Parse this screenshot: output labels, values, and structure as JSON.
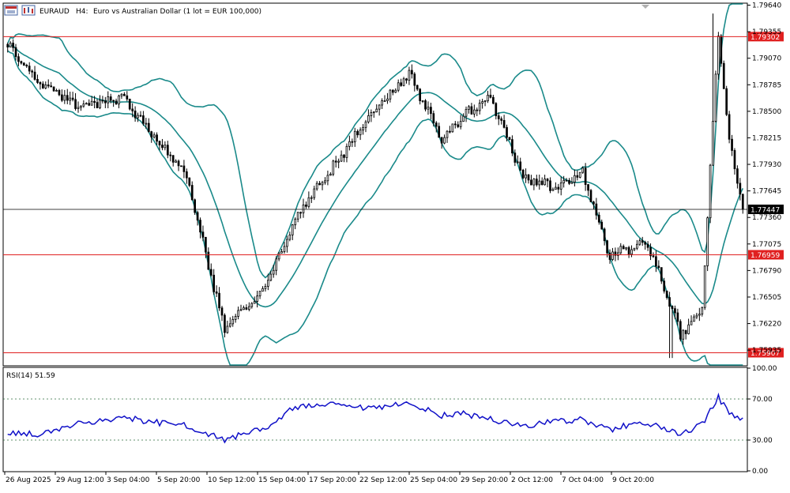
{
  "header": {
    "symbol": "EURAUD",
    "timeframe": "H4:",
    "description": "Euro vs Australian Dollar (1 lot = EUR 100,000)"
  },
  "toolbar": {
    "icons": [
      "chart-window-icon",
      "chart-properties-icon"
    ]
  },
  "colors": {
    "candle": "#000000",
    "bollinger": "#1a8a8a",
    "level_line": "#e02020",
    "price_line": "#000000",
    "rsi_line": "#1010c8",
    "grid_dash": "#2e6e3e"
  },
  "price_levels": [
    {
      "value": 1.79302,
      "label": "1.79302"
    },
    {
      "value": 1.76959,
      "label": "1.76959"
    },
    {
      "value": 1.75907,
      "label": "1.75907"
    }
  ],
  "current_price": {
    "value": 1.77447,
    "label": "1.77447"
  },
  "price_axis": {
    "ylim": [
      1.75775,
      1.79653
    ],
    "ticks": [
      "1.79640",
      "1.79355",
      "1.79070",
      "1.78785",
      "1.78500",
      "1.78215",
      "1.77930",
      "1.77645",
      "1.77360",
      "1.77075",
      "1.76790",
      "1.76505",
      "1.76220",
      "1.75935"
    ]
  },
  "time_axis": {
    "labels": [
      "26 Aug 2025",
      "29 Aug 12:00",
      "3 Sep 04:00",
      "5 Sep 20:00",
      "10 Sep 12:00",
      "15 Sep 04:00",
      "17 Sep 20:00",
      "22 Sep 12:00",
      "25 Sep 04:00",
      "29 Sep 20:00",
      "2 Oct 12:00",
      "7 Oct 04:00",
      "9 Oct 20:00"
    ]
  },
  "rsi_panel": {
    "label": "RSI(14) 51.59",
    "ylim": [
      0,
      100
    ],
    "ticks": [
      "100.00",
      "70.00",
      "30.00",
      "0.00"
    ],
    "levels": [
      70,
      30
    ]
  },
  "chart_data": {
    "type": "candlestick",
    "symbol": "EURAUD",
    "timeframe": "H4",
    "n_bars": 272,
    "anchors_index": [
      0,
      12,
      26,
      42,
      55,
      66,
      80,
      95,
      106,
      120,
      134,
      148,
      160,
      168,
      178,
      190,
      202,
      212,
      222,
      234,
      236,
      238,
      240,
      248,
      256,
      262,
      266,
      271
    ],
    "anchors_close": [
      1.7922,
      1.788,
      1.7855,
      1.7865,
      1.782,
      1.778,
      1.7615,
      1.766,
      1.7735,
      1.779,
      1.7848,
      1.789,
      1.782,
      1.7845,
      1.7865,
      1.778,
      1.7768,
      1.7785,
      1.7695,
      1.7708,
      1.7705,
      1.769,
      1.768,
      1.761,
      1.764,
      1.7935,
      1.7815,
      1.7745
    ],
    "rsi_anchors_index": [
      0,
      12,
      26,
      42,
      55,
      66,
      80,
      95,
      106,
      120,
      134,
      148,
      160,
      168,
      178,
      190,
      202,
      212,
      222,
      234,
      248,
      256,
      262,
      266,
      271
    ],
    "rsi_anchors": [
      38,
      35,
      46,
      52,
      47,
      44,
      30,
      42,
      62,
      64,
      60,
      66,
      54,
      56,
      50,
      44,
      48,
      50,
      40,
      48,
      35,
      45,
      72,
      55,
      51.59
    ]
  }
}
